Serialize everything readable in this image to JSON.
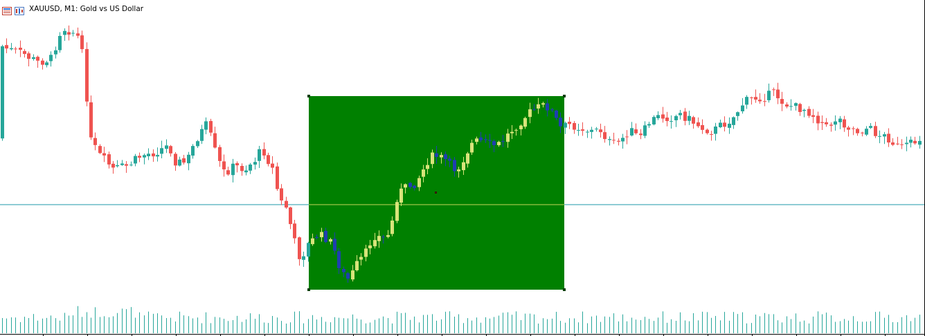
{
  "window": {
    "title": "XAUUSD, M1:  Gold vs US Dollar"
  },
  "colors": {
    "background": "#ffffff",
    "bull_candle": "#26a69a",
    "bear_candle": "#ef5350",
    "bull_in_rect": "#d8e47a",
    "bear_in_rect": "#1f3fb0",
    "rectangle_fill": "#008000",
    "horizontal_line": "#1e9aa8",
    "horizontal_line_in_rect": "#c8d65a",
    "volume": "#26a69a"
  },
  "icons": [
    "chart-window-icon",
    "symbol-properties-icon"
  ],
  "chart_data": {
    "type": "candlestick",
    "symbol": "XAUUSD",
    "timeframe": "M1",
    "description": "Gold vs US Dollar",
    "grid": false,
    "price_scale_visible": false,
    "horizontal_line": true,
    "rectangle_object": true
  }
}
